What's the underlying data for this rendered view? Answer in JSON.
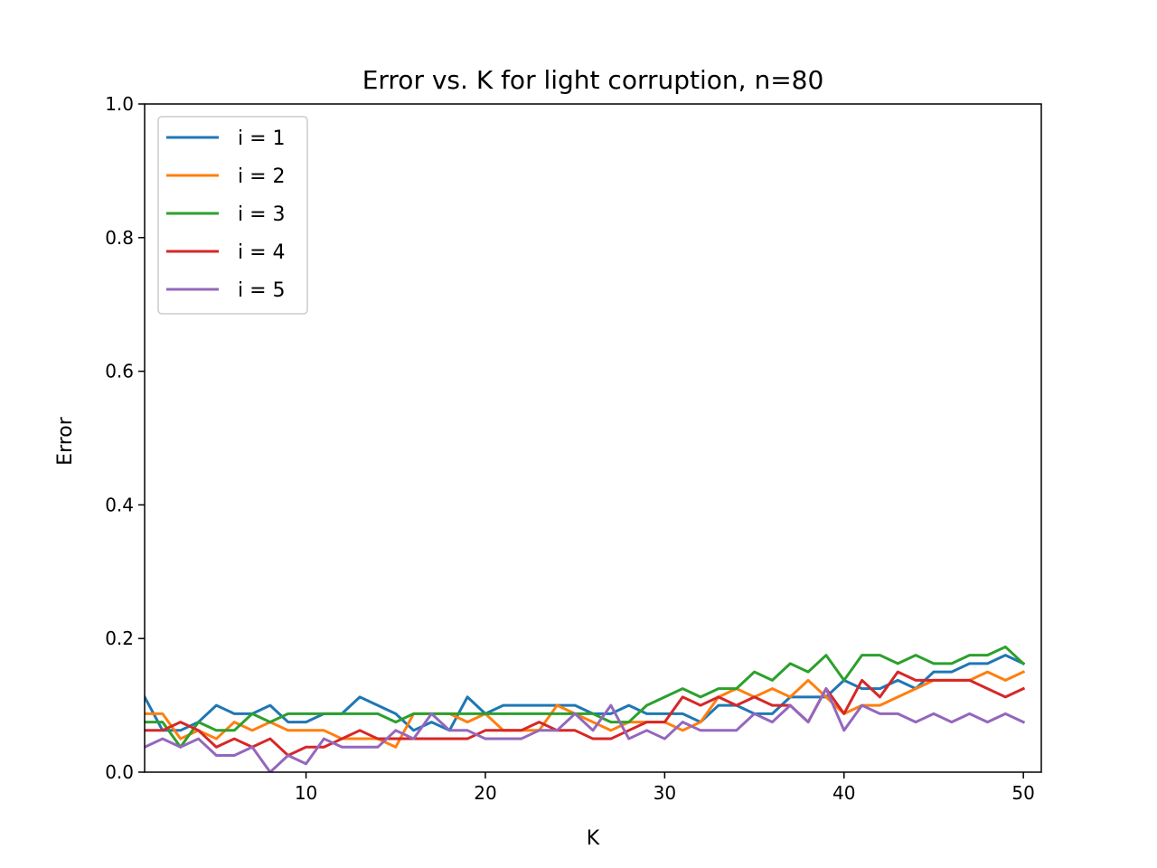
{
  "chart_data": {
    "type": "line",
    "title": "Error vs. K for light corruption, n=80",
    "xlabel": "K",
    "ylabel": "Error",
    "xlim": [
      1,
      51
    ],
    "ylim": [
      0,
      1.0
    ],
    "xticks": [
      10,
      20,
      30,
      40,
      50
    ],
    "yticks": [
      0.0,
      0.2,
      0.4,
      0.6,
      0.8,
      1.0
    ],
    "ytick_labels": [
      "0.0",
      "0.2",
      "0.4",
      "0.6",
      "0.8",
      "1.0"
    ],
    "grid": false,
    "legend_position": "top-left",
    "x": [
      1,
      2,
      3,
      4,
      5,
      6,
      7,
      8,
      9,
      10,
      11,
      12,
      13,
      14,
      15,
      16,
      17,
      18,
      19,
      20,
      21,
      22,
      23,
      24,
      25,
      26,
      27,
      28,
      29,
      30,
      31,
      32,
      33,
      34,
      35,
      36,
      37,
      38,
      39,
      40,
      41,
      42,
      43,
      44,
      45,
      46,
      47,
      48,
      49,
      50
    ],
    "series": [
      {
        "name": "i = 1",
        "color": "#1f77b4",
        "values": [
          0.1125,
          0.0625,
          0.0625,
          0.075,
          0.1,
          0.0875,
          0.0875,
          0.1,
          0.075,
          0.075,
          0.0875,
          0.0875,
          0.1125,
          0.1,
          0.0875,
          0.0625,
          0.075,
          0.0625,
          0.1125,
          0.0875,
          0.1,
          0.1,
          0.1,
          0.1,
          0.1,
          0.0875,
          0.0875,
          0.1,
          0.0875,
          0.0875,
          0.0875,
          0.075,
          0.1,
          0.1,
          0.0875,
          0.0875,
          0.1125,
          0.1125,
          0.1125,
          0.1375,
          0.125,
          0.125,
          0.1375,
          0.125,
          0.15,
          0.15,
          0.1625,
          0.1625,
          0.175,
          0.1625
        ]
      },
      {
        "name": "i = 2",
        "color": "#ff7f0e",
        "values": [
          0.0875,
          0.0875,
          0.05,
          0.0625,
          0.05,
          0.075,
          0.0625,
          0.075,
          0.0625,
          0.0625,
          0.0625,
          0.05,
          0.05,
          0.05,
          0.0375,
          0.0875,
          0.0875,
          0.0875,
          0.075,
          0.0875,
          0.0625,
          0.0625,
          0.0625,
          0.1,
          0.0875,
          0.075,
          0.0625,
          0.075,
          0.075,
          0.075,
          0.0625,
          0.075,
          0.1125,
          0.125,
          0.1125,
          0.125,
          0.1125,
          0.1375,
          0.1125,
          0.0875,
          0.1,
          0.1,
          0.1125,
          0.125,
          0.1375,
          0.1375,
          0.1375,
          0.15,
          0.1375,
          0.15
        ]
      },
      {
        "name": "i = 3",
        "color": "#2ca02c",
        "values": [
          0.075,
          0.075,
          0.0375,
          0.075,
          0.0625,
          0.0625,
          0.0875,
          0.075,
          0.0875,
          0.0875,
          0.0875,
          0.0875,
          0.0875,
          0.0875,
          0.075,
          0.0875,
          0.0875,
          0.0875,
          0.0875,
          0.0875,
          0.0875,
          0.0875,
          0.0875,
          0.0875,
          0.0875,
          0.0875,
          0.075,
          0.075,
          0.1,
          0.1125,
          0.125,
          0.1125,
          0.125,
          0.125,
          0.15,
          0.1375,
          0.1625,
          0.15,
          0.175,
          0.1375,
          0.175,
          0.175,
          0.1625,
          0.175,
          0.1625,
          0.1625,
          0.175,
          0.175,
          0.1875,
          0.1625
        ]
      },
      {
        "name": "i = 4",
        "color": "#d62728",
        "values": [
          0.0625,
          0.0625,
          0.075,
          0.0625,
          0.0375,
          0.05,
          0.0375,
          0.05,
          0.025,
          0.0375,
          0.0375,
          0.05,
          0.0625,
          0.05,
          0.05,
          0.05,
          0.05,
          0.05,
          0.05,
          0.0625,
          0.0625,
          0.0625,
          0.075,
          0.0625,
          0.0625,
          0.05,
          0.05,
          0.0625,
          0.075,
          0.075,
          0.1125,
          0.1,
          0.1125,
          0.1,
          0.1125,
          0.1,
          0.1,
          0.075,
          0.125,
          0.0875,
          0.1375,
          0.1125,
          0.15,
          0.1375,
          0.1375,
          0.1375,
          0.1375,
          0.125,
          0.1125,
          0.125
        ]
      },
      {
        "name": "i = 5",
        "color": "#9467bd",
        "values": [
          0.0375,
          0.05,
          0.0375,
          0.05,
          0.025,
          0.025,
          0.0375,
          0.0,
          0.025,
          0.0125,
          0.05,
          0.0375,
          0.0375,
          0.0375,
          0.0625,
          0.05,
          0.0875,
          0.0625,
          0.0625,
          0.05,
          0.05,
          0.05,
          0.0625,
          0.0625,
          0.0875,
          0.0625,
          0.1,
          0.05,
          0.0625,
          0.05,
          0.075,
          0.0625,
          0.0625,
          0.0625,
          0.0875,
          0.075,
          0.1,
          0.075,
          0.125,
          0.0625,
          0.1,
          0.0875,
          0.0875,
          0.075,
          0.0875,
          0.075,
          0.0875,
          0.075,
          0.0875,
          0.075
        ]
      }
    ]
  }
}
